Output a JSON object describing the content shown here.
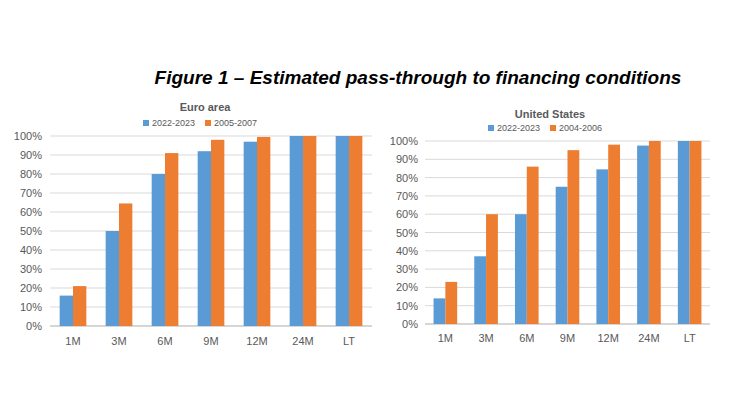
{
  "title": "Figure 1 – Estimated pass-through to financing conditions",
  "chart_data": [
    {
      "type": "bar",
      "title": "Euro area",
      "categories": [
        "1M",
        "3M",
        "6M",
        "9M",
        "12M",
        "24M",
        "LT"
      ],
      "series": [
        {
          "name": "2022-2023",
          "color": "#5b9bd5",
          "values": [
            16,
            50,
            80,
            92,
            97,
            100,
            100
          ]
        },
        {
          "name": "2005-2007",
          "color": "#ed7d31",
          "values": [
            21,
            64.5,
            91,
            98,
            99.5,
            100,
            100
          ]
        }
      ],
      "ylim": [
        0,
        100
      ],
      "yticks": [
        {
          "value": 0,
          "label": "0%"
        },
        {
          "value": 10,
          "label": "10%"
        },
        {
          "value": 20,
          "label": "20%"
        },
        {
          "value": 30,
          "label": "30%"
        },
        {
          "value": 40,
          "label": "40%"
        },
        {
          "value": 50,
          "label": "50%"
        },
        {
          "value": 60,
          "label": "60%"
        },
        {
          "value": 70,
          "label": "70%"
        },
        {
          "value": 80,
          "label": "80%"
        },
        {
          "value": 90,
          "label": "90%"
        },
        {
          "value": 100,
          "label": "100%"
        }
      ],
      "grid": true,
      "legend": "top"
    },
    {
      "type": "bar",
      "title": "United States",
      "categories": [
        "1M",
        "3M",
        "6M",
        "9M",
        "12M",
        "24M",
        "LT"
      ],
      "series": [
        {
          "name": "2022-2023",
          "color": "#5b9bd5",
          "values": [
            14,
            37,
            60,
            75,
            84.5,
            97.5,
            100
          ]
        },
        {
          "name": "2004-2006",
          "color": "#ed7d31",
          "values": [
            23,
            60,
            86,
            95,
            98,
            100,
            100
          ]
        }
      ],
      "ylim": [
        0,
        100
      ],
      "yticks": [
        {
          "value": 0,
          "label": "0%"
        },
        {
          "value": 10,
          "label": "10%"
        },
        {
          "value": 20,
          "label": "20%"
        },
        {
          "value": 30,
          "label": "30%"
        },
        {
          "value": 40,
          "label": "40%"
        },
        {
          "value": 50,
          "label": "50%"
        },
        {
          "value": 60,
          "label": "60%"
        },
        {
          "value": 70,
          "label": "70%"
        },
        {
          "value": 80,
          "label": "80%"
        },
        {
          "value": 90,
          "label": "90%"
        },
        {
          "value": 100,
          "label": "100%"
        }
      ],
      "grid": true,
      "legend": "top"
    }
  ]
}
